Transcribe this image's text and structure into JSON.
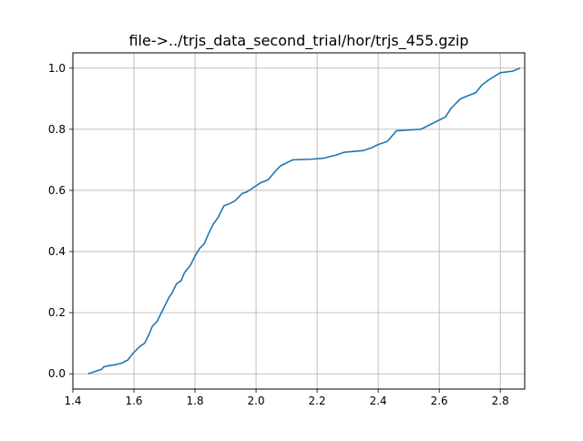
{
  "chart_data": {
    "type": "line",
    "title": "file->../trjs_data_second_trial/hor/trjs_455.gzip",
    "xlabel": "",
    "ylabel": "",
    "xlim": [
      1.4,
      2.88
    ],
    "ylim": [
      -0.05,
      1.05
    ],
    "grid": true,
    "x_ticks": [
      1.4,
      1.6,
      1.8,
      2.0,
      2.2,
      2.4,
      2.6,
      2.8
    ],
    "x_tick_labels": [
      "1.4",
      "1.6",
      "1.8",
      "2.0",
      "2.2",
      "2.4",
      "2.6",
      "2.8"
    ],
    "y_ticks": [
      0.0,
      0.2,
      0.4,
      0.6,
      0.8,
      1.0
    ],
    "y_tick_labels": [
      "0.0",
      "0.2",
      "0.4",
      "0.6",
      "0.8",
      "1.0"
    ],
    "series": [
      {
        "color": "#1f77b4",
        "x": [
          1.45,
          1.48,
          1.495,
          1.5,
          1.51,
          1.54,
          1.56,
          1.58,
          1.595,
          1.605,
          1.62,
          1.635,
          1.65,
          1.66,
          1.675,
          1.685,
          1.7,
          1.715,
          1.725,
          1.74,
          1.755,
          1.765,
          1.785,
          1.8,
          1.815,
          1.83,
          1.845,
          1.86,
          1.875,
          1.895,
          1.91,
          1.93,
          1.955,
          1.97,
          2.0,
          2.015,
          2.04,
          2.065,
          2.08,
          2.1,
          2.12,
          2.18,
          2.22,
          2.26,
          2.29,
          2.35,
          2.38,
          2.4,
          2.43,
          2.46,
          2.54,
          2.58,
          2.62,
          2.64,
          2.67,
          2.72,
          2.74,
          2.76,
          2.8,
          2.84,
          2.865
        ],
        "y": [
          0.0,
          0.01,
          0.015,
          0.022,
          0.025,
          0.03,
          0.035,
          0.045,
          0.065,
          0.075,
          0.09,
          0.1,
          0.13,
          0.155,
          0.17,
          0.19,
          0.22,
          0.25,
          0.265,
          0.295,
          0.305,
          0.33,
          0.355,
          0.385,
          0.41,
          0.425,
          0.46,
          0.49,
          0.51,
          0.55,
          0.555,
          0.565,
          0.59,
          0.595,
          0.615,
          0.625,
          0.635,
          0.665,
          0.68,
          0.69,
          0.7,
          0.702,
          0.705,
          0.715,
          0.725,
          0.73,
          0.74,
          0.75,
          0.76,
          0.795,
          0.8,
          0.82,
          0.84,
          0.87,
          0.9,
          0.92,
          0.945,
          0.96,
          0.985,
          0.99,
          1.0
        ]
      }
    ]
  }
}
